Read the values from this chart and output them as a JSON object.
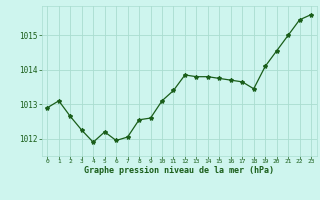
{
  "x": [
    0,
    1,
    2,
    3,
    4,
    5,
    6,
    7,
    8,
    9,
    10,
    11,
    12,
    13,
    14,
    15,
    16,
    17,
    18,
    19,
    20,
    21,
    22,
    23
  ],
  "y": [
    1012.9,
    1013.1,
    1012.65,
    1012.25,
    1011.9,
    1012.2,
    1011.95,
    1012.05,
    1012.55,
    1012.6,
    1013.1,
    1013.4,
    1013.85,
    1013.8,
    1013.8,
    1013.75,
    1013.7,
    1013.65,
    1013.45,
    1014.1,
    1014.55,
    1015.0,
    1015.45,
    1015.6
  ],
  "line_color": "#1a5e1a",
  "marker": "*",
  "marker_size": 3,
  "bg_color": "#cef5ee",
  "grid_color": "#aaddd0",
  "xlabel": "Graphe pression niveau de la mer (hPa)",
  "xlabel_color": "#1a5e1a",
  "tick_color": "#1a5e1a",
  "ylim": [
    1011.5,
    1015.85
  ],
  "yticks": [
    1012,
    1013,
    1014,
    1015
  ],
  "xlim": [
    -0.5,
    23.5
  ],
  "xticks": [
    0,
    1,
    2,
    3,
    4,
    5,
    6,
    7,
    8,
    9,
    10,
    11,
    12,
    13,
    14,
    15,
    16,
    17,
    18,
    19,
    20,
    21,
    22,
    23
  ]
}
